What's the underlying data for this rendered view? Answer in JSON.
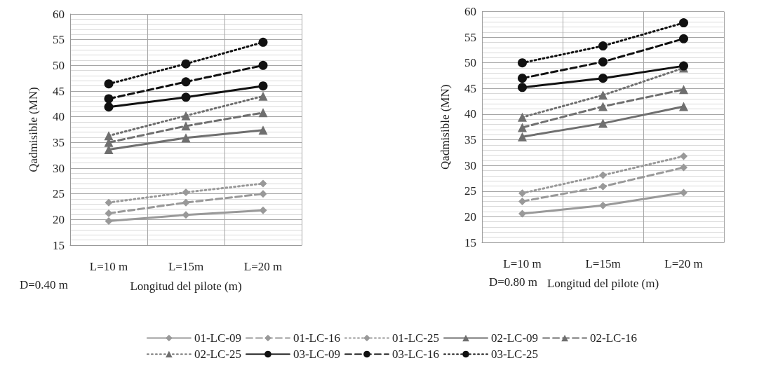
{
  "chart_data": [
    {
      "type": "line",
      "categories": [
        "L=10 m",
        "L=15m",
        "L=20 m"
      ],
      "xlabel": "Longitud del pilote (m)",
      "ylabel": "Qadmisible (MN)",
      "annotations": [
        "D=0.40 m"
      ],
      "ylim": [
        15,
        60
      ],
      "yticks": [
        15,
        20,
        25,
        30,
        35,
        40,
        45,
        50,
        55,
        60
      ],
      "grid": true,
      "legend": "bottom",
      "series": [
        {
          "name": "01-LC-09",
          "color": "#999999",
          "marker": "diamond",
          "line_style": "solid",
          "values": [
            19.7,
            20.9,
            21.8
          ]
        },
        {
          "name": "01-LC-16",
          "color": "#999999",
          "marker": "diamond",
          "line_style": "dashed",
          "values": [
            21.2,
            23.3,
            25.0
          ]
        },
        {
          "name": "01-LC-25",
          "color": "#999999",
          "marker": "diamond",
          "line_style": "dotted",
          "values": [
            23.3,
            25.3,
            27.0
          ]
        },
        {
          "name": "02-LC-09",
          "color": "#6f6f6f",
          "marker": "triangle",
          "line_style": "solid",
          "values": [
            33.6,
            35.9,
            37.4
          ]
        },
        {
          "name": "02-LC-16",
          "color": "#6f6f6f",
          "marker": "triangle",
          "line_style": "dashed",
          "values": [
            35.0,
            38.2,
            40.8
          ]
        },
        {
          "name": "02-LC-25",
          "color": "#6f6f6f",
          "marker": "triangle",
          "line_style": "dotted",
          "values": [
            36.3,
            40.2,
            44.0
          ]
        },
        {
          "name": "03-LC-09",
          "color": "#111111",
          "marker": "circle",
          "line_style": "solid",
          "values": [
            41.9,
            43.8,
            46.0
          ]
        },
        {
          "name": "03-LC-16",
          "color": "#111111",
          "marker": "circle",
          "line_style": "dashed",
          "values": [
            43.5,
            46.8,
            50.0
          ]
        },
        {
          "name": "03-LC-25",
          "color": "#111111",
          "marker": "circle",
          "line_style": "dotted",
          "values": [
            46.4,
            50.3,
            54.5
          ]
        }
      ]
    },
    {
      "type": "line",
      "categories": [
        "L=10 m",
        "L=15m",
        "L=20 m"
      ],
      "xlabel": "Longitud del pilote (m)",
      "ylabel": "Qadmisible (MN)",
      "annotations": [
        "D=0.80 m"
      ],
      "ylim": [
        15,
        60
      ],
      "yticks": [
        15,
        20,
        25,
        30,
        35,
        40,
        45,
        50,
        55,
        60
      ],
      "grid": true,
      "series": [
        {
          "color": "#999999",
          "marker": "diamond",
          "line_style": "solid",
          "values": [
            20.6,
            22.2,
            24.7
          ]
        },
        {
          "color": "#999999",
          "marker": "diamond",
          "line_style": "dashed",
          "values": [
            23.0,
            25.9,
            29.6
          ]
        },
        {
          "color": "#999999",
          "marker": "diamond",
          "line_style": "dotted",
          "values": [
            24.6,
            28.1,
            31.8
          ]
        },
        {
          "color": "#6f6f6f",
          "marker": "triangle",
          "line_style": "solid",
          "values": [
            35.6,
            38.2,
            41.5
          ]
        },
        {
          "color": "#6f6f6f",
          "marker": "triangle",
          "line_style": "dashed",
          "values": [
            37.4,
            41.5,
            44.8
          ]
        },
        {
          "color": "#6f6f6f",
          "marker": "triangle",
          "line_style": "dotted",
          "values": [
            39.4,
            43.7,
            49.0
          ]
        },
        {
          "color": "#111111",
          "marker": "circle",
          "line_style": "solid",
          "values": [
            45.2,
            47.0,
            49.4
          ]
        },
        {
          "color": "#111111",
          "marker": "circle",
          "line_style": "dashed",
          "values": [
            47.0,
            50.2,
            54.7
          ]
        },
        {
          "color": "#111111",
          "marker": "circle",
          "line_style": "dotted",
          "values": [
            50.0,
            53.3,
            57.8
          ]
        }
      ]
    }
  ]
}
